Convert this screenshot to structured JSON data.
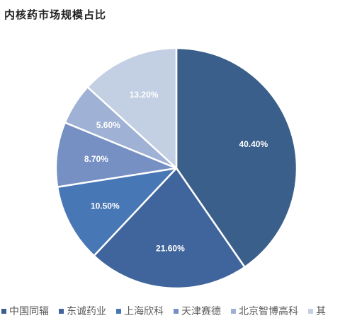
{
  "chart_data": {
    "type": "pie",
    "title": "内核药市场规模占比",
    "categories": [
      "中国同辐",
      "东诚药业",
      "上海欣科",
      "天津赛德",
      "北京智博高科",
      "其"
    ],
    "values": [
      40.4,
      21.6,
      10.5,
      8.7,
      5.6,
      13.2
    ],
    "labels": [
      "40.40%",
      "21.60%",
      "10.50%",
      "8.70%",
      "5.60%",
      "13.20%"
    ],
    "colors": [
      "#3a5f8a",
      "#3f659c",
      "#4877b6",
      "#7690c4",
      "#9fb1d4",
      "#c3cfe2"
    ],
    "legend_position": "bottom"
  }
}
